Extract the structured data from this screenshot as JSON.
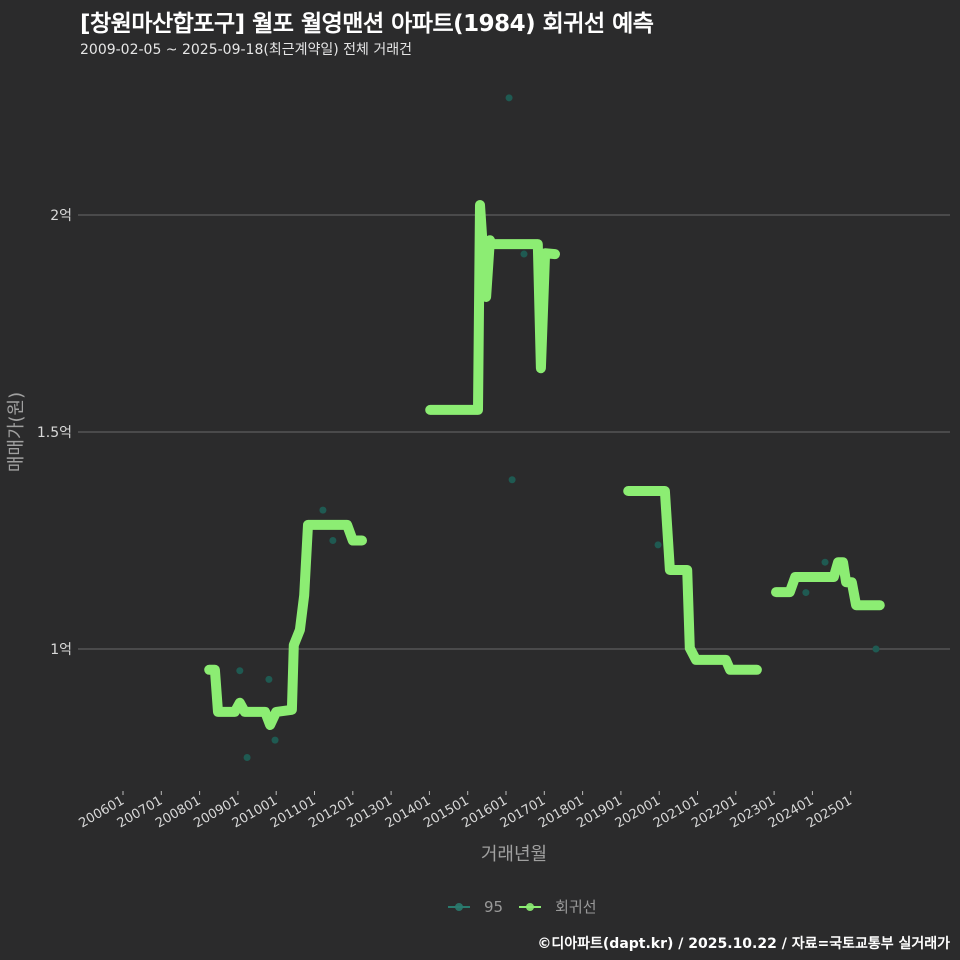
{
  "header": {
    "title": "[창원마산합포구] 월포 월영맨션 아파트(1984) 회귀선 예측",
    "subtitle": "2009-02-05 ~ 2025-09-18(최근계약일) 전체 거래건"
  },
  "footer": {
    "credit": "©디아파트(dapt.kr) / 2025.10.22 / 자료=국토교통부 실거래가"
  },
  "legend": {
    "items": [
      {
        "label": "95",
        "color": "#2a7a6e"
      },
      {
        "label": "회귀선",
        "color": "#8ced73"
      }
    ]
  },
  "colors": {
    "background": "#2b2b2c",
    "grid": "#6a6a6a",
    "regression": "#8ced73",
    "scatter": "#1f5a52"
  },
  "chart_data": {
    "type": "line",
    "title": "[창원마산합포구] 월포 월영맨션 아파트(1984) 회귀선 예측",
    "subtitle": "2009-02-05 ~ 2025-09-18(최근계약일) 전체 거래건",
    "xlabel": "거래년월",
    "ylabel": "매매가(원)",
    "x_ticks": [
      "200601",
      "200701",
      "200801",
      "200901",
      "201001",
      "201101",
      "201201",
      "201301",
      "201401",
      "201501",
      "201601",
      "201701",
      "201801",
      "201901",
      "202001",
      "202101",
      "202201",
      "202301",
      "202401",
      "202501"
    ],
    "y_ticks": [
      {
        "value": 1.0,
        "label": "1억"
      },
      {
        "value": 1.5,
        "label": "1.5억"
      },
      {
        "value": 2.0,
        "label": "2억"
      }
    ],
    "ylim": [
      0.68,
      2.33
    ],
    "xlim": [
      2005.2,
      2027.0
    ],
    "grid": "horizontal",
    "legend_position": "bottom",
    "series": [
      {
        "name": "95",
        "kind": "scatter",
        "unit": "억원",
        "points": [
          [
            2009.05,
            0.95
          ],
          [
            2009.24,
            0.75
          ],
          [
            2009.81,
            0.93
          ],
          [
            2009.97,
            0.79
          ],
          [
            2011.22,
            1.32
          ],
          [
            2011.48,
            1.25
          ],
          [
            2016.08,
            2.27
          ],
          [
            2016.16,
            1.39
          ],
          [
            2016.47,
            1.91
          ],
          [
            2019.97,
            1.24
          ],
          [
            2023.83,
            1.13
          ],
          [
            2024.33,
            1.2
          ],
          [
            2025.66,
            1.0
          ]
        ]
      },
      {
        "name": "회귀선",
        "kind": "line",
        "unit": "억원",
        "segments": [
          [
            [
              2008.25,
              0.952
            ],
            [
              2008.4,
              0.952
            ],
            [
              2008.48,
              0.855
            ],
            [
              2008.92,
              0.855
            ],
            [
              2009.05,
              0.876
            ],
            [
              2009.18,
              0.855
            ],
            [
              2009.71,
              0.855
            ],
            [
              2009.84,
              0.825
            ],
            [
              2010.0,
              0.855
            ],
            [
              2010.41,
              0.86
            ],
            [
              2010.46,
              1.009
            ],
            [
              2010.62,
              1.044
            ],
            [
              2010.73,
              1.124
            ],
            [
              2010.83,
              1.286
            ],
            [
              2011.85,
              1.286
            ],
            [
              2012.0,
              1.25
            ],
            [
              2012.24,
              1.25
            ]
          ],
          [
            [
              2014.02,
              1.551
            ],
            [
              2015.27,
              1.551
            ],
            [
              2015.32,
              2.023
            ],
            [
              2015.48,
              1.811
            ],
            [
              2015.58,
              1.942
            ],
            [
              2015.63,
              1.933
            ],
            [
              2016.83,
              1.933
            ],
            [
              2016.91,
              1.647
            ],
            [
              2017.02,
              1.912
            ],
            [
              2017.28,
              1.91
            ]
          ],
          [
            [
              2019.19,
              1.364
            ],
            [
              2020.15,
              1.364
            ],
            [
              2020.28,
              1.182
            ],
            [
              2020.73,
              1.182
            ],
            [
              2020.8,
              1.002
            ],
            [
              2020.96,
              0.975
            ],
            [
              2021.74,
              0.975
            ],
            [
              2021.85,
              0.952
            ],
            [
              2022.55,
              0.952
            ]
          ],
          [
            [
              2023.05,
              1.131
            ],
            [
              2023.41,
              1.131
            ],
            [
              2023.55,
              1.166
            ],
            [
              2024.56,
              1.166
            ],
            [
              2024.67,
              1.2
            ],
            [
              2024.8,
              1.2
            ],
            [
              2024.88,
              1.154
            ],
            [
              2025.03,
              1.154
            ],
            [
              2025.14,
              1.101
            ],
            [
              2025.76,
              1.101
            ]
          ]
        ]
      }
    ]
  }
}
